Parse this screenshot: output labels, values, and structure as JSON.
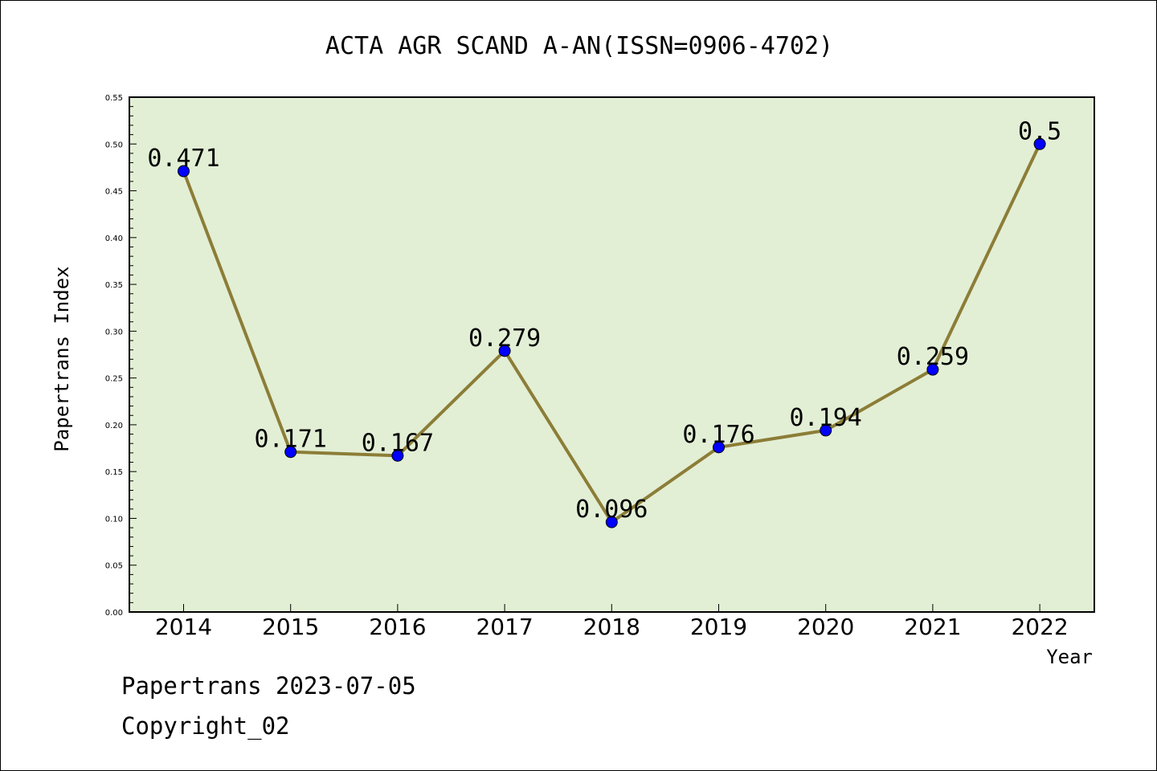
{
  "chart_data": {
    "type": "line",
    "title": "ACTA AGR SCAND A-AN(ISSN=0906-4702)",
    "xlabel": "Year",
    "ylabel": "Papertrans Index",
    "categories": [
      "2014",
      "2015",
      "2016",
      "2017",
      "2018",
      "2019",
      "2020",
      "2021",
      "2022"
    ],
    "values": [
      0.471,
      0.171,
      0.167,
      0.279,
      0.096,
      0.176,
      0.194,
      0.259,
      0.5
    ],
    "data_labels": [
      "0.471",
      "0.171",
      "0.167",
      "0.279",
      "0.096",
      "0.176",
      "0.194",
      "0.259",
      "0.5"
    ],
    "ylim": [
      0,
      0.55
    ],
    "yticks": [
      "0.00",
      "0.05",
      "0.10",
      "0.15",
      "0.20",
      "0.25",
      "0.30",
      "0.35",
      "0.40",
      "0.45",
      "0.50",
      "0.55"
    ],
    "grid": false,
    "colors": {
      "plot_bg": "#e2efd5",
      "line": "#8c7d37",
      "marker": "#0000ff"
    }
  },
  "footer": {
    "date_line": "Papertrans 2023-07-05",
    "copyright": "Copyright_02"
  }
}
